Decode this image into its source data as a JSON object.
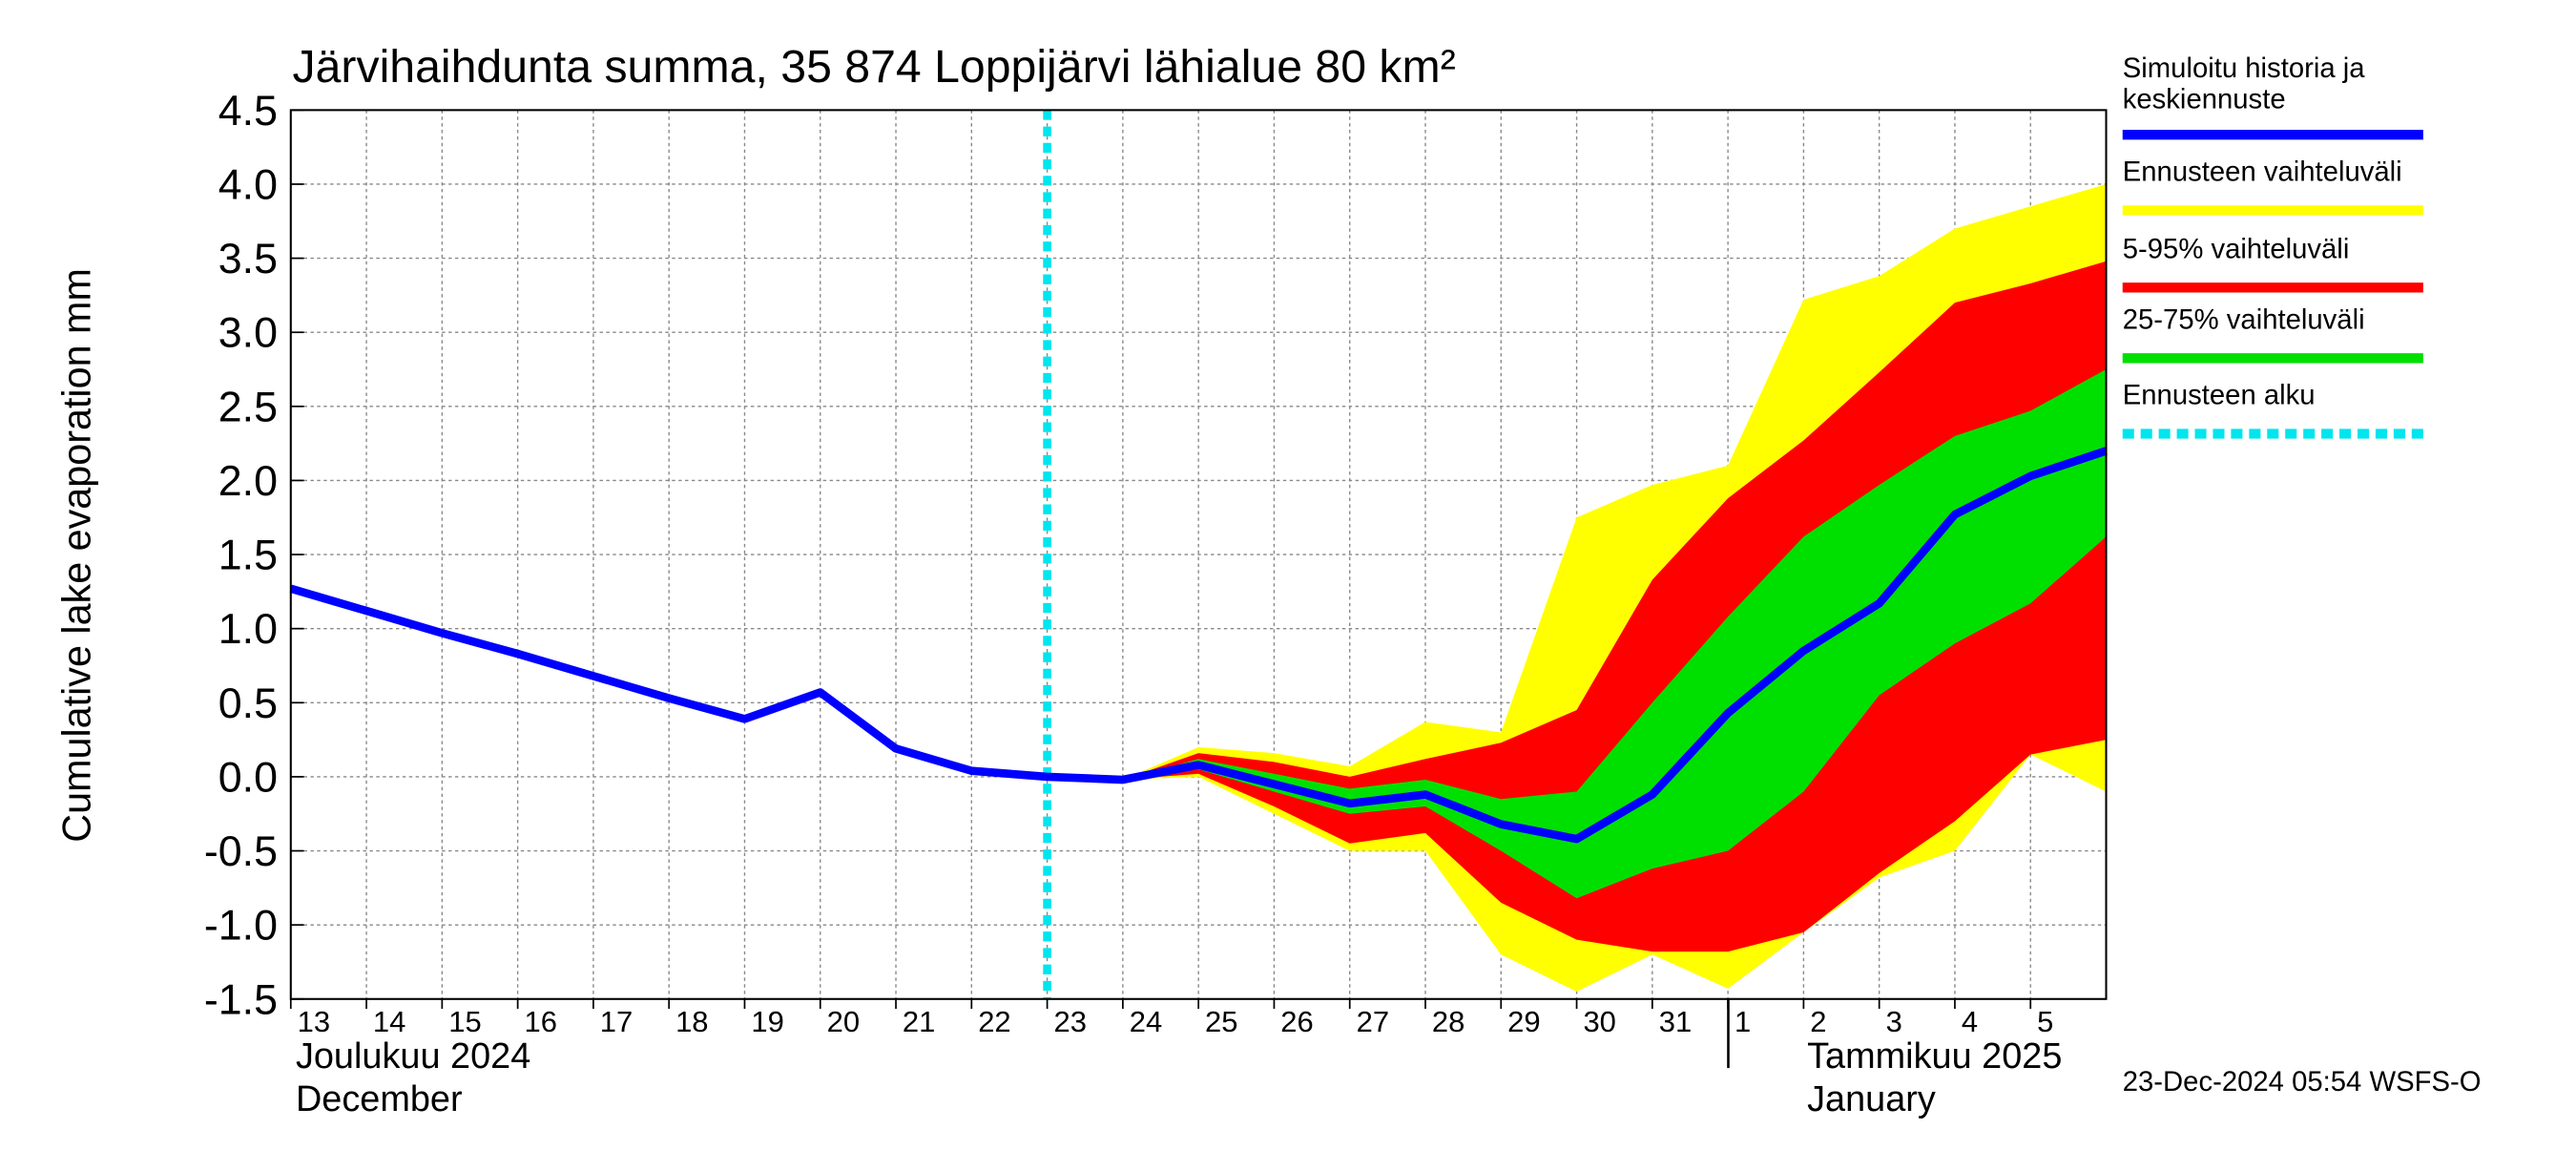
{
  "chart_data": {
    "type": "line",
    "title": "Järvihaihdunta summa, 35 874 Loppijärvi lähialue 80 km²",
    "y_label": "Cumulative lake evaporation   mm",
    "x_labels": {
      "month1_fi": "Joulukuu  2024",
      "month1_en": "December",
      "month2_fi": "Tammikuu  2025",
      "month2_en": "January"
    },
    "footer": "23-Dec-2024 05:54 WSFS-O",
    "x": [
      "2024-12-13",
      "2024-12-14",
      "2024-12-15",
      "2024-12-16",
      "2024-12-17",
      "2024-12-18",
      "2024-12-19",
      "2024-12-20",
      "2024-12-21",
      "2024-12-22",
      "2024-12-23",
      "2024-12-24",
      "2024-12-25",
      "2024-12-26",
      "2024-12-27",
      "2024-12-28",
      "2024-12-29",
      "2024-12-30",
      "2024-12-31",
      "2025-01-01",
      "2025-01-02",
      "2025-01-03",
      "2025-01-04",
      "2025-01-05",
      "2025-01-06"
    ],
    "band_x": [
      "2024-12-24",
      "2024-12-25",
      "2024-12-26",
      "2024-12-27",
      "2024-12-28",
      "2024-12-29",
      "2024-12-30",
      "2024-12-31",
      "2025-01-01",
      "2025-01-02",
      "2025-01-03",
      "2025-01-04",
      "2025-01-05",
      "2025-01-06"
    ],
    "series": [
      {
        "name": "Ennusteen vaihteluväli",
        "kind": "band",
        "color": "#ffff00",
        "upper": [
          -0.02,
          0.2,
          0.16,
          0.07,
          0.37,
          0.3,
          1.75,
          1.97,
          2.1,
          3.22,
          3.38,
          3.7,
          3.85,
          4.0
        ],
        "lower": [
          -0.02,
          0.0,
          -0.25,
          -0.5,
          -0.5,
          -1.2,
          -1.45,
          -1.2,
          -1.43,
          -1.05,
          -0.68,
          -0.5,
          0.15,
          -0.1
        ]
      },
      {
        "name": "5-95% vaihteluväli",
        "kind": "band",
        "color": "#ff0000",
        "upper": [
          -0.02,
          0.16,
          0.1,
          0.0,
          0.12,
          0.23,
          0.45,
          1.33,
          1.88,
          2.27,
          2.73,
          3.2,
          3.33,
          3.48
        ],
        "lower": [
          -0.02,
          0.02,
          -0.2,
          -0.45,
          -0.38,
          -0.85,
          -1.1,
          -1.18,
          -1.18,
          -1.05,
          -0.65,
          -0.3,
          0.15,
          0.25
        ]
      },
      {
        "name": "25-75% vaihteluväli",
        "kind": "band",
        "color": "#00e000",
        "upper": [
          -0.02,
          0.12,
          0.02,
          -0.08,
          -0.02,
          -0.15,
          -0.1,
          0.5,
          1.08,
          1.62,
          1.97,
          2.3,
          2.47,
          2.75
        ],
        "lower": [
          -0.02,
          0.05,
          -0.1,
          -0.25,
          -0.2,
          -0.5,
          -0.82,
          -0.62,
          -0.5,
          -0.1,
          0.55,
          0.9,
          1.17,
          1.62
        ]
      },
      {
        "name": "Simuloitu historia ja keskiennuste",
        "kind": "line",
        "color": "#0000ff",
        "values": [
          1.27,
          1.12,
          0.97,
          0.83,
          0.68,
          0.53,
          0.39,
          0.57,
          0.19,
          0.04,
          0.0,
          -0.02,
          0.08,
          -0.05,
          -0.18,
          -0.12,
          -0.32,
          -0.42,
          -0.12,
          0.43,
          0.85,
          1.17,
          1.77,
          2.03,
          2.2
        ]
      }
    ],
    "forecast_start": {
      "name": "Ennusteen alku",
      "x": "2024-12-23",
      "color": "#00e5ee"
    },
    "legend_order": [
      3,
      0,
      1,
      2
    ],
    "xlim": [
      "2024-12-13",
      "2025-01-06"
    ],
    "xticks": [
      {
        "value": "2024-12-13",
        "label": "13"
      },
      {
        "value": "2024-12-14",
        "label": "14"
      },
      {
        "value": "2024-12-15",
        "label": "15"
      },
      {
        "value": "2024-12-16",
        "label": "16"
      },
      {
        "value": "2024-12-17",
        "label": "17"
      },
      {
        "value": "2024-12-18",
        "label": "18"
      },
      {
        "value": "2024-12-19",
        "label": "19"
      },
      {
        "value": "2024-12-20",
        "label": "20"
      },
      {
        "value": "2024-12-21",
        "label": "21"
      },
      {
        "value": "2024-12-22",
        "label": "22"
      },
      {
        "value": "2024-12-23",
        "label": "23"
      },
      {
        "value": "2024-12-24",
        "label": "24"
      },
      {
        "value": "2024-12-25",
        "label": "25"
      },
      {
        "value": "2024-12-26",
        "label": "26"
      },
      {
        "value": "2024-12-27",
        "label": "27"
      },
      {
        "value": "2024-12-28",
        "label": "28"
      },
      {
        "value": "2024-12-29",
        "label": "29"
      },
      {
        "value": "2024-12-30",
        "label": "30"
      },
      {
        "value": "2024-12-31",
        "label": "31"
      },
      {
        "value": "2025-01-01",
        "label": "1"
      },
      {
        "value": "2025-01-02",
        "label": "2"
      },
      {
        "value": "2025-01-03",
        "label": "3"
      },
      {
        "value": "2025-01-04",
        "label": "4"
      },
      {
        "value": "2025-01-05",
        "label": "5"
      }
    ],
    "ylim": [
      -1.5,
      4.5
    ],
    "yticks": [
      4.5,
      {
        "value": 4,
        "label": "4.0"
      },
      3.5,
      {
        "value": 3,
        "label": "3.0"
      },
      2.5,
      {
        "value": 2,
        "label": "2.0"
      },
      1.5,
      {
        "value": 1,
        "label": "1.0"
      },
      0.5,
      {
        "value": 0,
        "label": "0.0"
      },
      -0.5,
      {
        "value": -1,
        "label": "-1.0"
      },
      -1.5
    ],
    "grid": true
  }
}
